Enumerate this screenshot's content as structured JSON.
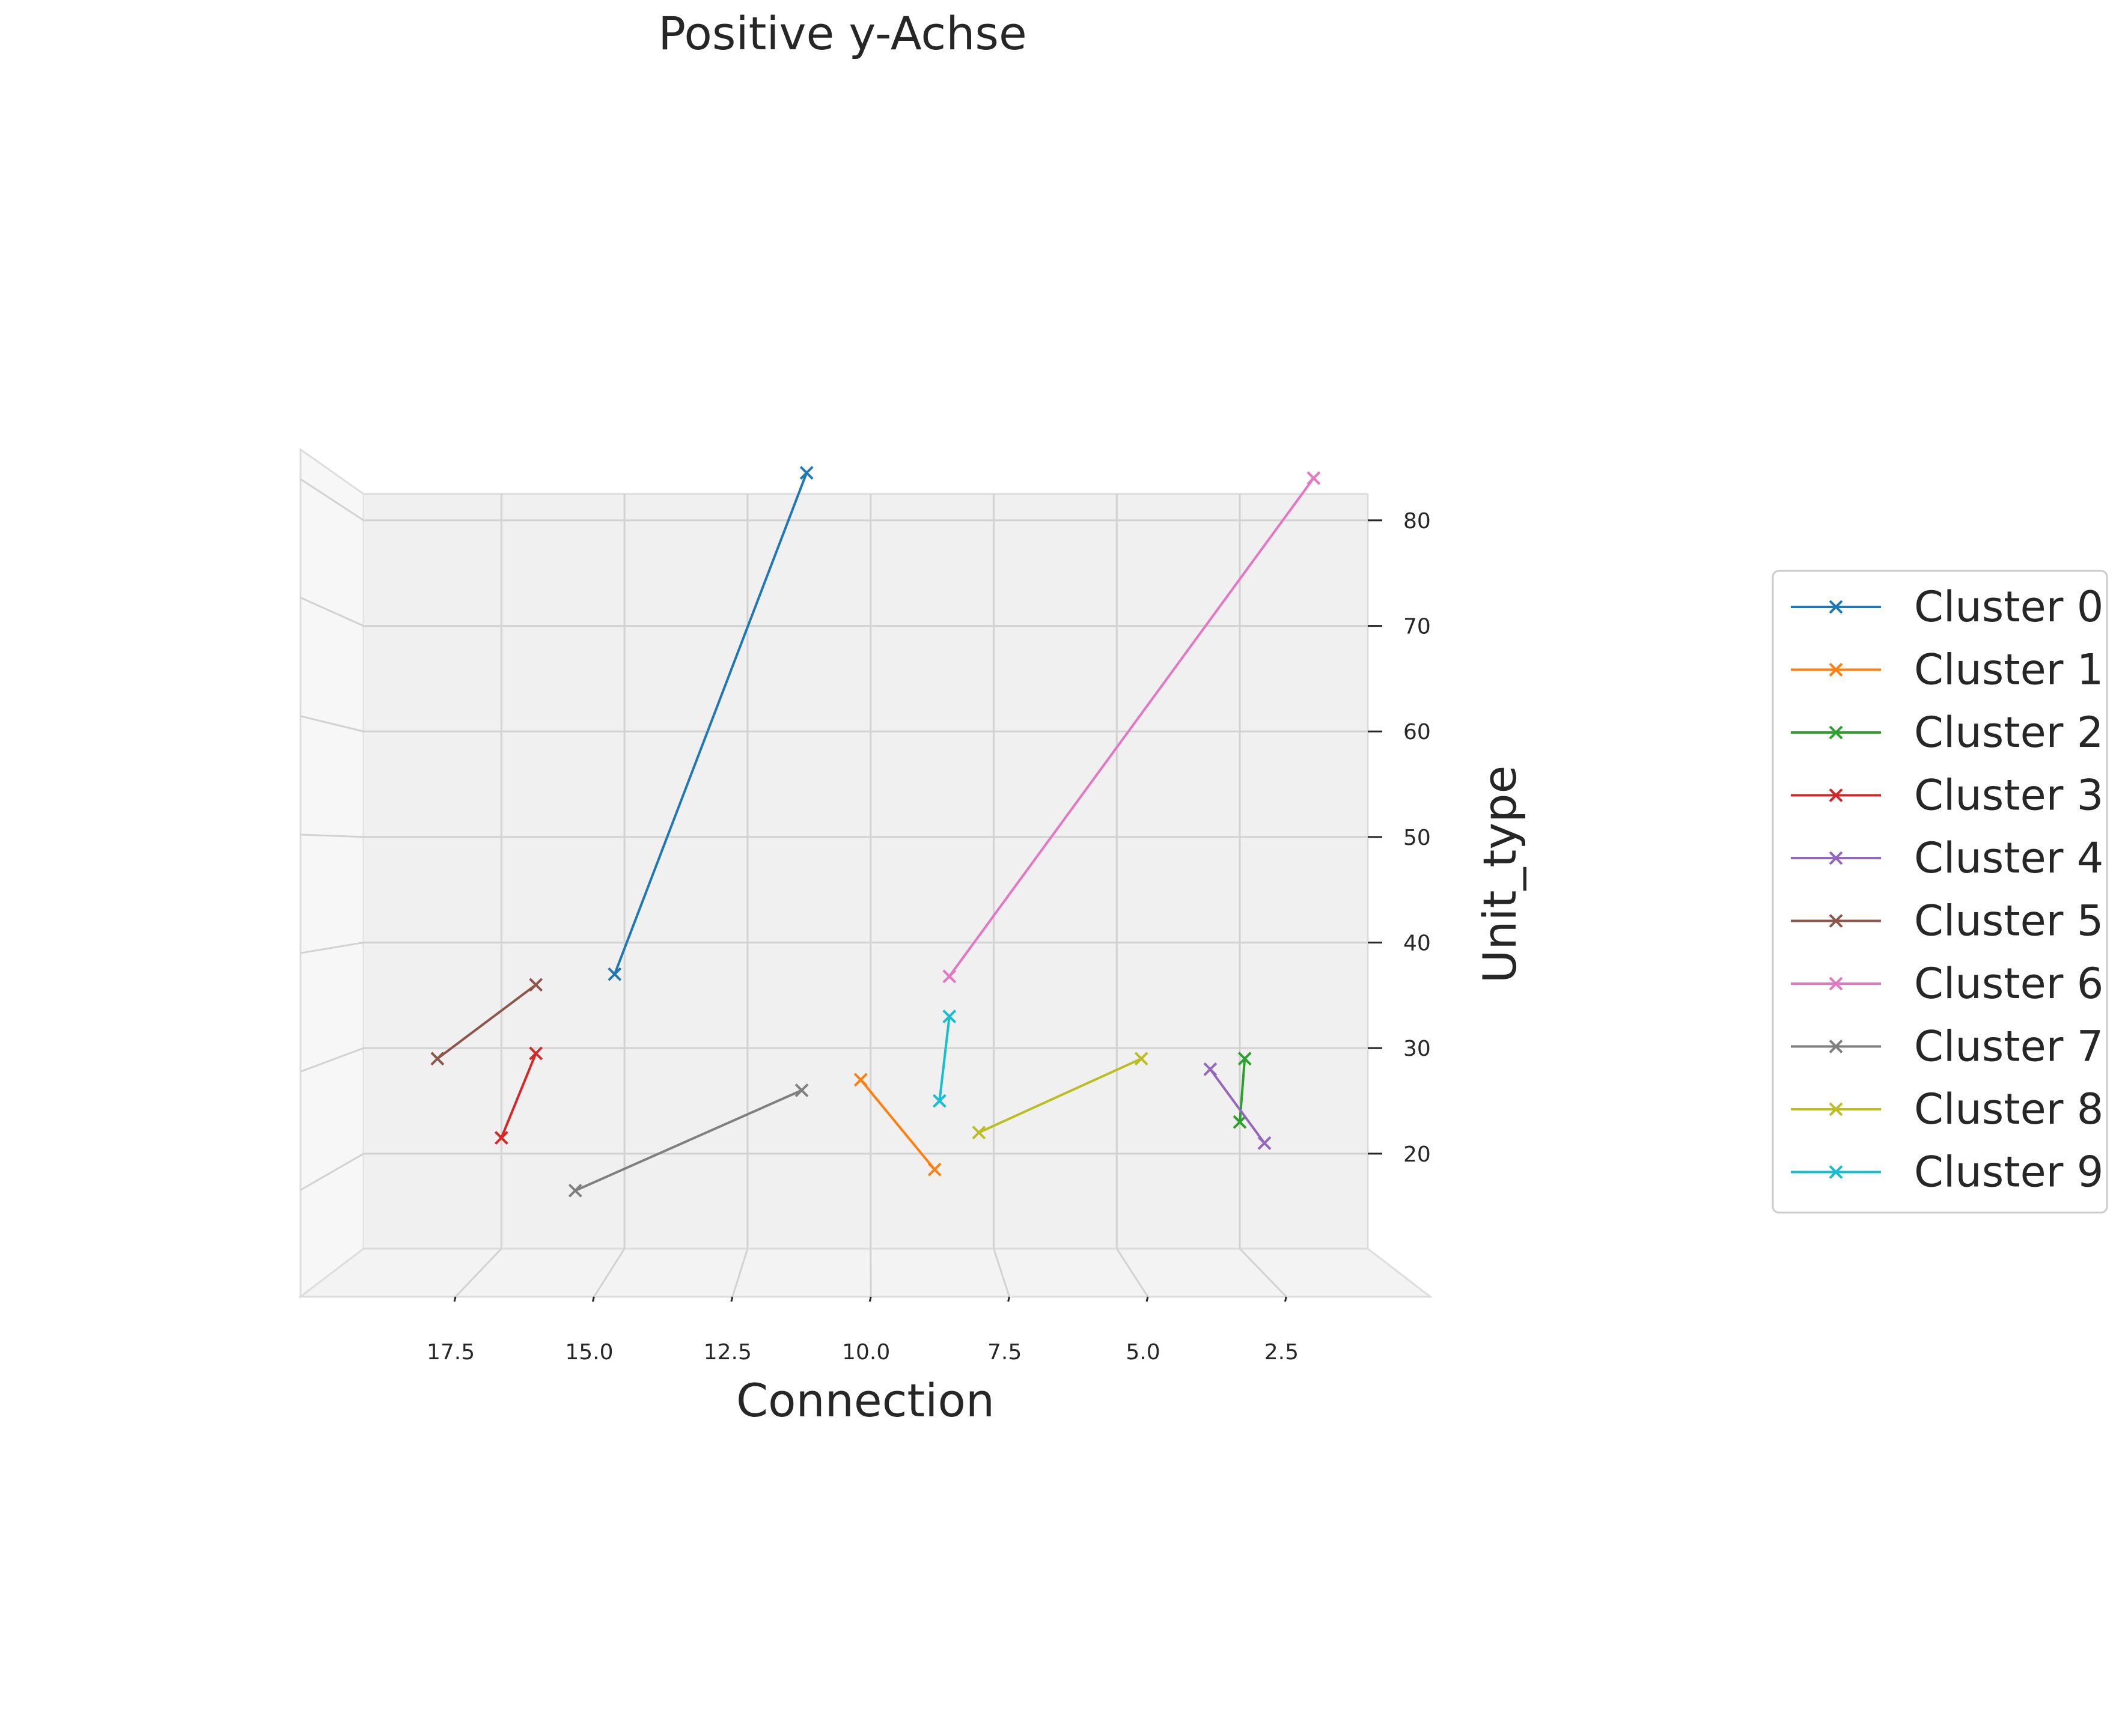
{
  "chart_data": {
    "type": "line",
    "title": "Positive y-Achse",
    "xlabel": "Connection",
    "ylabel": "Unit_type",
    "x_reversed": true,
    "xlim": [
      20.3,
      -0.1
    ],
    "ylim": [
      11,
      82.5
    ],
    "x_ticks": [
      17.5,
      15.0,
      12.5,
      10.0,
      7.5,
      5.0,
      2.5
    ],
    "y_ticks": [
      20,
      30,
      40,
      50,
      60,
      70,
      80
    ],
    "grid": true,
    "legend_position": "right",
    "marker": "x",
    "series": [
      {
        "name": "Cluster 0",
        "color": "#1f77b4",
        "x": [
          15.2,
          11.3
        ],
        "y": [
          37.0,
          84.5
        ]
      },
      {
        "name": "Cluster 1",
        "color": "#ff7f0e",
        "x": [
          10.2,
          8.7
        ],
        "y": [
          27.0,
          18.5
        ]
      },
      {
        "name": "Cluster 2",
        "color": "#2ca02c",
        "x": [
          2.4,
          2.5
        ],
        "y": [
          29.0,
          23.0
        ]
      },
      {
        "name": "Cluster 3",
        "color": "#d62728",
        "x": [
          17.5,
          16.8
        ],
        "y": [
          21.5,
          29.5
        ]
      },
      {
        "name": "Cluster 4",
        "color": "#9467bd",
        "x": [
          3.1,
          2.0
        ],
        "y": [
          28.0,
          21.0
        ]
      },
      {
        "name": "Cluster 5",
        "color": "#8c564b",
        "x": [
          18.8,
          16.8
        ],
        "y": [
          29.0,
          36.0
        ]
      },
      {
        "name": "Cluster 6",
        "color": "#e377c2",
        "x": [
          8.4,
          1.0
        ],
        "y": [
          36.8,
          84.0
        ]
      },
      {
        "name": "Cluster 7",
        "color": "#7f7f7f",
        "x": [
          16.0,
          11.4
        ],
        "y": [
          16.5,
          26.0
        ]
      },
      {
        "name": "Cluster 8",
        "color": "#bcbd22",
        "x": [
          7.8,
          4.5
        ],
        "y": [
          22.0,
          29.0
        ]
      },
      {
        "name": "Cluster 9",
        "color": "#17becf",
        "x": [
          8.6,
          8.4
        ],
        "y": [
          25.0,
          33.0
        ]
      }
    ]
  }
}
